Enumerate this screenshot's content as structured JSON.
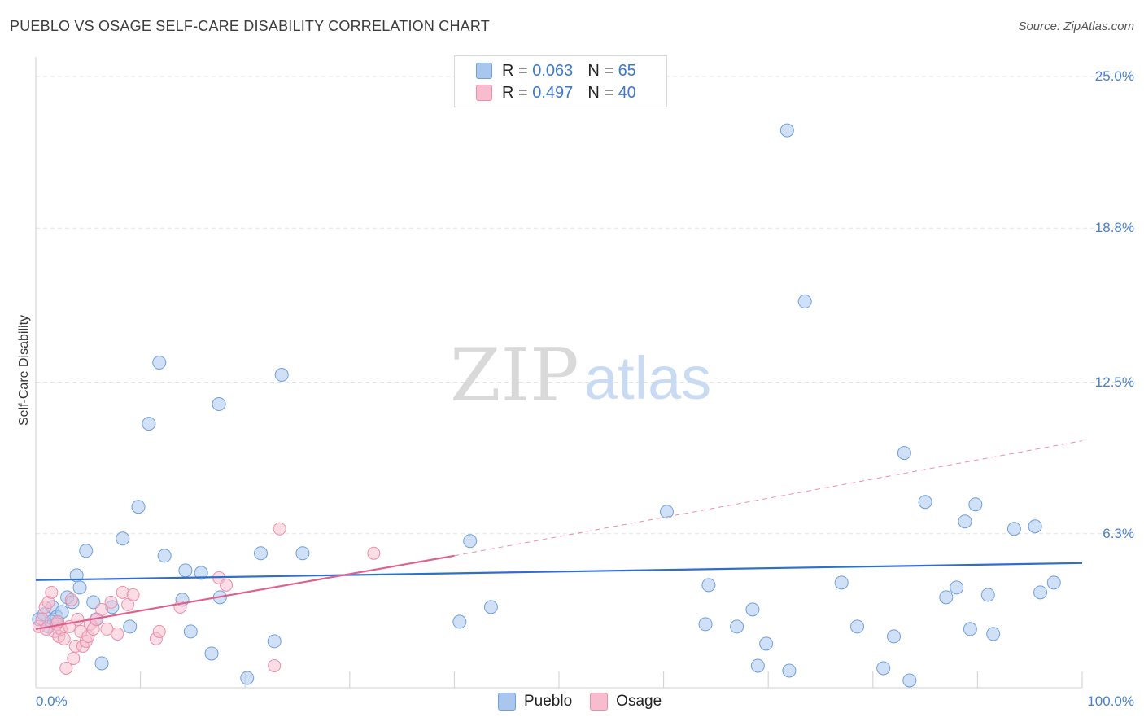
{
  "chart_data": {
    "type": "scatter",
    "title": "PUEBLO VS OSAGE SELF-CARE DISABILITY CORRELATION CHART",
    "source": "Source: ZipAtlas.com",
    "ylabel": "Self-Care Disability",
    "xlabel": "",
    "xlim": [
      0,
      100
    ],
    "ylim": [
      0,
      25.8
    ],
    "x_tick_labels": {
      "min": "0.0%",
      "max": "100.0%"
    },
    "y_ticks": [
      {
        "value": 6.3,
        "label": "6.3%"
      },
      {
        "value": 12.5,
        "label": "12.5%"
      },
      {
        "value": 18.8,
        "label": "18.8%"
      },
      {
        "value": 25.0,
        "label": "25.0%"
      }
    ],
    "watermark": {
      "part1": "ZIP",
      "part2": "atlas"
    },
    "legend": [
      {
        "r_label": "R =",
        "r_value": "0.063",
        "n_label": "N =",
        "n_value": "65"
      },
      {
        "r_label": "R =",
        "r_value": "0.497",
        "n_label": "N =",
        "n_value": "40"
      }
    ],
    "colors": {
      "pueblo_fill": "#a9c7ee",
      "pueblo_stroke": "#6f9fd9",
      "pueblo_line": "#2f6fcc",
      "osage_fill": "#f7bccd",
      "osage_stroke": "#ea8fab",
      "osage_line": "#e0608c",
      "grid": "#e3e3e3",
      "axis": "#cfcfcf"
    },
    "series": [
      {
        "name": "Pueblo",
        "trend": {
          "x0": 0,
          "y0": 4.4,
          "x1": 100,
          "y1": 5.1
        },
        "points": [
          [
            0.3,
            2.8
          ],
          [
            0.8,
            3.0
          ],
          [
            1.2,
            2.5
          ],
          [
            1.6,
            3.3
          ],
          [
            2.0,
            2.9
          ],
          [
            3.0,
            3.7
          ],
          [
            3.5,
            3.5
          ],
          [
            3.9,
            4.6
          ],
          [
            4.2,
            4.1
          ],
          [
            4.8,
            5.6
          ],
          [
            5.5,
            3.5
          ],
          [
            5.8,
            2.8
          ],
          [
            6.3,
            1.0
          ],
          [
            7.3,
            3.3
          ],
          [
            8.3,
            6.1
          ],
          [
            9.0,
            2.5
          ],
          [
            9.8,
            7.4
          ],
          [
            10.8,
            10.8
          ],
          [
            11.8,
            13.3
          ],
          [
            12.3,
            5.4
          ],
          [
            14.0,
            3.6
          ],
          [
            14.3,
            4.8
          ],
          [
            14.8,
            2.3
          ],
          [
            15.8,
            4.7
          ],
          [
            16.8,
            1.4
          ],
          [
            17.5,
            11.6
          ],
          [
            17.6,
            3.7
          ],
          [
            20.2,
            0.4
          ],
          [
            21.5,
            5.5
          ],
          [
            22.8,
            1.9
          ],
          [
            23.5,
            12.8
          ],
          [
            25.5,
            5.5
          ],
          [
            40.5,
            2.7
          ],
          [
            41.5,
            6.0
          ],
          [
            43.5,
            3.3
          ],
          [
            60.3,
            7.2
          ],
          [
            64.0,
            2.6
          ],
          [
            64.3,
            4.2
          ],
          [
            67.0,
            2.5
          ],
          [
            68.5,
            3.2
          ],
          [
            69.0,
            0.9
          ],
          [
            69.8,
            1.8
          ],
          [
            71.8,
            22.8
          ],
          [
            72.0,
            0.7
          ],
          [
            73.5,
            15.8
          ],
          [
            77.0,
            4.3
          ],
          [
            78.5,
            2.5
          ],
          [
            81.0,
            0.8
          ],
          [
            82.0,
            2.1
          ],
          [
            83.0,
            9.6
          ],
          [
            83.5,
            0.3
          ],
          [
            85.0,
            7.6
          ],
          [
            87.0,
            3.7
          ],
          [
            88.0,
            4.1
          ],
          [
            88.8,
            6.8
          ],
          [
            89.3,
            2.4
          ],
          [
            89.8,
            7.5
          ],
          [
            91.0,
            3.8
          ],
          [
            91.5,
            2.2
          ],
          [
            93.5,
            6.5
          ],
          [
            95.5,
            6.6
          ],
          [
            96.0,
            3.9
          ],
          [
            97.3,
            4.3
          ],
          [
            1.5,
            2.7
          ],
          [
            2.5,
            3.1
          ]
        ]
      },
      {
        "name": "Osage",
        "trend": {
          "x0": 0,
          "y0": 2.4,
          "x1": 40,
          "y1": 5.4
        },
        "trend_dash": {
          "x0": 40,
          "y0": 5.4,
          "x1": 100,
          "y1": 10.1
        },
        "points": [
          [
            0.3,
            2.5
          ],
          [
            0.6,
            2.8
          ],
          [
            0.9,
            3.3
          ],
          [
            1.2,
            3.5
          ],
          [
            1.5,
            3.9
          ],
          [
            1.8,
            2.3
          ],
          [
            2.0,
            2.6
          ],
          [
            2.2,
            2.1
          ],
          [
            2.4,
            2.4
          ],
          [
            2.7,
            2.0
          ],
          [
            2.9,
            0.8
          ],
          [
            3.2,
            2.5
          ],
          [
            3.4,
            3.6
          ],
          [
            3.6,
            1.2
          ],
          [
            3.8,
            1.7
          ],
          [
            4.0,
            2.8
          ],
          [
            4.3,
            2.3
          ],
          [
            4.5,
            1.7
          ],
          [
            4.8,
            1.9
          ],
          [
            5.0,
            2.1
          ],
          [
            5.2,
            2.6
          ],
          [
            5.5,
            2.4
          ],
          [
            5.8,
            2.8
          ],
          [
            6.3,
            3.2
          ],
          [
            6.8,
            2.4
          ],
          [
            7.2,
            3.5
          ],
          [
            7.8,
            2.2
          ],
          [
            8.3,
            3.9
          ],
          [
            8.8,
            3.4
          ],
          [
            9.3,
            3.8
          ],
          [
            11.5,
            2.0
          ],
          [
            11.8,
            2.3
          ],
          [
            13.8,
            3.3
          ],
          [
            17.5,
            4.5
          ],
          [
            18.2,
            4.2
          ],
          [
            22.8,
            0.9
          ],
          [
            23.3,
            6.5
          ],
          [
            32.3,
            5.5
          ],
          [
            1.0,
            2.4
          ],
          [
            2.1,
            2.7
          ]
        ]
      }
    ]
  }
}
